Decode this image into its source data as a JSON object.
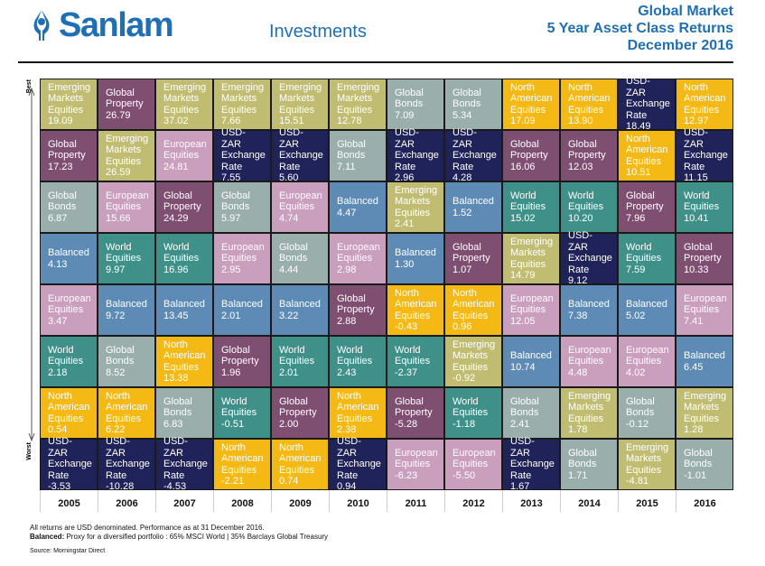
{
  "header": {
    "logo_text": "Sanlam",
    "sub_brand": "Investments",
    "title_lines": [
      "Global Market",
      "5 Year Asset Class Returns",
      "December 2016"
    ]
  },
  "axis": {
    "best_label": "Best",
    "worst_label": "Worst"
  },
  "colors": {
    "Emerging Markets Equities": "#c0bd72",
    "Global Property": "#7f4f72",
    "European Equities": "#c99fbd",
    "USD-ZAR Exchange Rate": "#20225a",
    "Global Bonds": "#9aaeab",
    "Balanced": "#5e8bb6",
    "World Equities": "#3e9088",
    "North American Equities": "#f4b914"
  },
  "chart_data": {
    "type": "table",
    "title": "Global Market 5 Year Asset Class Returns December 2016",
    "columns": [
      {
        "year": "2005",
        "cells": [
          {
            "asset": "Emerging Markets Equities",
            "value": "19.09"
          },
          {
            "asset": "Global Property",
            "value": "17.23"
          },
          {
            "asset": "Global Bonds",
            "value": "6.87"
          },
          {
            "asset": "Balanced",
            "value": "4.13"
          },
          {
            "asset": "European Equities",
            "value": "3.47"
          },
          {
            "asset": "World Equities",
            "value": "2.18"
          },
          {
            "asset": "North American Equities",
            "value": "0.54"
          },
          {
            "asset": "USD-ZAR Exchange Rate",
            "value": "-3.53"
          }
        ]
      },
      {
        "year": "2006",
        "cells": [
          {
            "asset": "Global Property",
            "value": "26.79"
          },
          {
            "asset": "Emerging Markets Equities",
            "value": "26.59"
          },
          {
            "asset": "European Equities",
            "value": "15.66"
          },
          {
            "asset": "World Equities",
            "value": "9.97"
          },
          {
            "asset": "Balanced",
            "value": "9.72"
          },
          {
            "asset": "Global Bonds",
            "value": "8.52"
          },
          {
            "asset": "North American Equities",
            "value": "6.22"
          },
          {
            "asset": "USD-ZAR Exchange Rate",
            "value": "-10.28"
          }
        ]
      },
      {
        "year": "2007",
        "cells": [
          {
            "asset": "Emerging Markets Equities",
            "value": "37.02"
          },
          {
            "asset": "European Equities",
            "value": "24.81"
          },
          {
            "asset": "Global Property",
            "value": "24.29"
          },
          {
            "asset": "World Equities",
            "value": "16.96"
          },
          {
            "asset": "Balanced",
            "value": "13.45"
          },
          {
            "asset": "North American Equities",
            "value": "13.38"
          },
          {
            "asset": "Global Bonds",
            "value": "6.83"
          },
          {
            "asset": "USD-ZAR Exchange Rate",
            "value": "-4.53"
          }
        ]
      },
      {
        "year": "2008",
        "cells": [
          {
            "asset": "Emerging Markets Equities",
            "value": "7.66"
          },
          {
            "asset": "USD-ZAR Exchange Rate",
            "value": "7.55"
          },
          {
            "asset": "Global Bonds",
            "value": "5.97"
          },
          {
            "asset": "European Equities",
            "value": "2.95"
          },
          {
            "asset": "Balanced",
            "value": "2.01"
          },
          {
            "asset": "Global Property",
            "value": "1.96"
          },
          {
            "asset": "World Equities",
            "value": "-0.51"
          },
          {
            "asset": "North American Equities",
            "value": "-2.21"
          }
        ]
      },
      {
        "year": "2009",
        "cells": [
          {
            "asset": "Emerging Markets Equities",
            "value": "15.51"
          },
          {
            "asset": "USD-ZAR Exchange Rate",
            "value": "5.60"
          },
          {
            "asset": "European Equities",
            "value": "4.74"
          },
          {
            "asset": "Global Bonds",
            "value": "4.44"
          },
          {
            "asset": "Balanced",
            "value": "3.22"
          },
          {
            "asset": "World Equities",
            "value": "2.01"
          },
          {
            "asset": "Global Property",
            "value": "2.00"
          },
          {
            "asset": "North American Equities",
            "value": "0.74"
          }
        ]
      },
      {
        "year": "2010",
        "cells": [
          {
            "asset": "Emerging Markets Equities",
            "value": "12.78"
          },
          {
            "asset": "Global Bonds",
            "value": "7.11"
          },
          {
            "asset": "Balanced",
            "value": "4.47"
          },
          {
            "asset": "European Equities",
            "value": "2.98"
          },
          {
            "asset": "Global Property",
            "value": "2.88"
          },
          {
            "asset": "World Equities",
            "value": "2.43"
          },
          {
            "asset": "North American Equities",
            "value": "2.38"
          },
          {
            "asset": "USD-ZAR Exchange Rate",
            "value": "0.94"
          }
        ]
      },
      {
        "year": "2011",
        "cells": [
          {
            "asset": "Global Bonds",
            "value": "7.09"
          },
          {
            "asset": "USD-ZAR Exchange Rate",
            "value": "2.96"
          },
          {
            "asset": "Emerging Markets Equities",
            "value": "2.41"
          },
          {
            "asset": "Balanced",
            "value": "1.30"
          },
          {
            "asset": "North American Equities",
            "value": "-0.43"
          },
          {
            "asset": "World Equities",
            "value": "-2.37"
          },
          {
            "asset": "Global Property",
            "value": "-5.28"
          },
          {
            "asset": "European Equities",
            "value": "-6.23"
          }
        ]
      },
      {
        "year": "2012",
        "cells": [
          {
            "asset": "Global Bonds",
            "value": "5.34"
          },
          {
            "asset": "USD-ZAR Exchange Rate",
            "value": "4.28"
          },
          {
            "asset": "Balanced",
            "value": "1.52"
          },
          {
            "asset": "Global Property",
            "value": "1.07"
          },
          {
            "asset": "North American Equities",
            "value": "0.96"
          },
          {
            "asset": "Emerging Markets Equities",
            "value": "-0.92"
          },
          {
            "asset": "World Equities",
            "value": "-1.18"
          },
          {
            "asset": "European Equities",
            "value": "-5.50"
          }
        ]
      },
      {
        "year": "2013",
        "cells": [
          {
            "asset": "North American Equities",
            "value": "17.09"
          },
          {
            "asset": "Global Property",
            "value": "16.06"
          },
          {
            "asset": "World Equities",
            "value": "15.02"
          },
          {
            "asset": "Emerging Markets Equities",
            "value": "14.79"
          },
          {
            "asset": "European Equities",
            "value": "12.05"
          },
          {
            "asset": "Balanced",
            "value": "10.74"
          },
          {
            "asset": "Global Bonds",
            "value": "2.41"
          },
          {
            "asset": "USD-ZAR Exchange Rate",
            "value": "1.67"
          }
        ]
      },
      {
        "year": "2014",
        "cells": [
          {
            "asset": "North American Equities",
            "value": "13.90"
          },
          {
            "asset": "Global Property",
            "value": "12.03"
          },
          {
            "asset": "World Equities",
            "value": "10.20"
          },
          {
            "asset": "USD-ZAR Exchange Rate",
            "value": "9.12"
          },
          {
            "asset": "Balanced",
            "value": "7.38"
          },
          {
            "asset": "European Equities",
            "value": "4.48"
          },
          {
            "asset": "Emerging Markets Equities",
            "value": "1.78"
          },
          {
            "asset": "Global Bonds",
            "value": "1.71"
          }
        ]
      },
      {
        "year": "2015",
        "cells": [
          {
            "asset": "USD-ZAR Exchange Rate",
            "value": "18.49"
          },
          {
            "asset": "North American Equities",
            "value": "10.51"
          },
          {
            "asset": "Global Property",
            "value": "7.96"
          },
          {
            "asset": "World Equities",
            "value": "7.59"
          },
          {
            "asset": "Balanced",
            "value": "5.02"
          },
          {
            "asset": "European Equities",
            "value": "4.02"
          },
          {
            "asset": "Global Bonds",
            "value": "-0.12"
          },
          {
            "asset": "Emerging Markets Equities",
            "value": "-4.81"
          }
        ]
      },
      {
        "year": "2016",
        "cells": [
          {
            "asset": "North American Equities",
            "value": "12.97"
          },
          {
            "asset": "USD-ZAR Exchange Rate",
            "value": "11.15"
          },
          {
            "asset": "World Equities",
            "value": "10.41"
          },
          {
            "asset": "Global Property",
            "value": "10.33"
          },
          {
            "asset": "European Equities",
            "value": "7.41"
          },
          {
            "asset": "Balanced",
            "value": "6.45"
          },
          {
            "asset": "Emerging Markets Equities",
            "value": "1.28"
          },
          {
            "asset": "Global Bonds",
            "value": "-1.01"
          }
        ]
      }
    ]
  },
  "footer": {
    "note1": "All returns are USD denominated. Performance as at 31 December 2016.",
    "note2_bold": "Balanced:",
    "note2_text": " Proxy for a diversified portfolio : 65% MSCI World | 35% Barclays Global Treasury",
    "source": "Source: Morningstar Direct"
  }
}
